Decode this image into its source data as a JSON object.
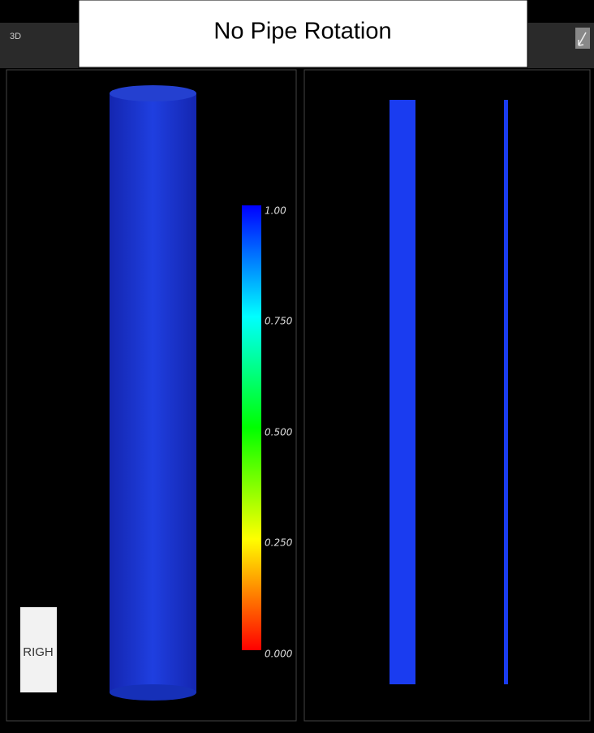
{
  "window": {
    "tab": "3D",
    "title": "No Pipe Rotation"
  },
  "colorbar": {
    "labels": [
      "1.00",
      "0.750",
      "0.500",
      "0.250",
      "0.000"
    ]
  },
  "orientation": {
    "label": "RIGH"
  }
}
